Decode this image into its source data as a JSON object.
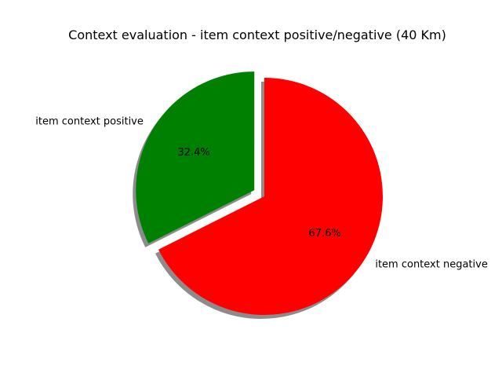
{
  "chart_data": {
    "type": "pie",
    "title": "Context evaluation - item context  positive/negative (40 Km)",
    "slices": [
      {
        "label": "item context positive",
        "value": 32.4,
        "percent_label": "32.4%",
        "color": "#008000",
        "exploded": true
      },
      {
        "label": "item context negative",
        "value": 67.6,
        "percent_label": "67.6%",
        "color": "#ff0000",
        "exploded": false
      }
    ],
    "start_angle_deg": 90,
    "direction": "counterclockwise",
    "shadow": true,
    "legend": "none"
  }
}
